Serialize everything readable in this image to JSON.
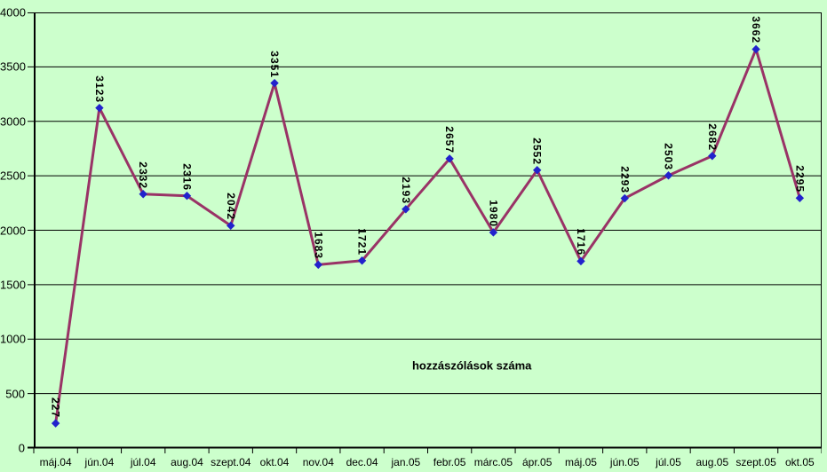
{
  "chart_data": {
    "type": "line",
    "title": "",
    "xlabel": "",
    "ylabel": "",
    "categories": [
      "máj.04",
      "jún.04",
      "júl.04",
      "aug.04",
      "szept.04",
      "okt.04",
      "nov.04",
      "dec.04",
      "jan.05",
      "febr.05",
      "márc.05",
      "ápr.05",
      "máj.05",
      "jún.05",
      "júl.05",
      "aug.05",
      "szept.05",
      "okt.05"
    ],
    "series": [
      {
        "name": "hozzászólások száma",
        "values": [
          227,
          3123,
          2332,
          2316,
          2042,
          3351,
          1683,
          1721,
          2193,
          2657,
          1980,
          2552,
          1716,
          2293,
          2503,
          2682,
          3662,
          2295
        ]
      }
    ],
    "data_labels_visible": true,
    "ylim": [
      0,
      4000
    ],
    "yticks": [
      0,
      500,
      1000,
      1500,
      2000,
      2500,
      3000,
      3500,
      4000
    ],
    "grid": "horizontal",
    "legend_position": "none",
    "annotation": {
      "text": "hozzászólások száma"
    },
    "colors": {
      "background": "#ccffcc",
      "line": "#993366",
      "marker": "#2222cc",
      "grid_and_axes": "#000000",
      "text": "#000000"
    }
  }
}
